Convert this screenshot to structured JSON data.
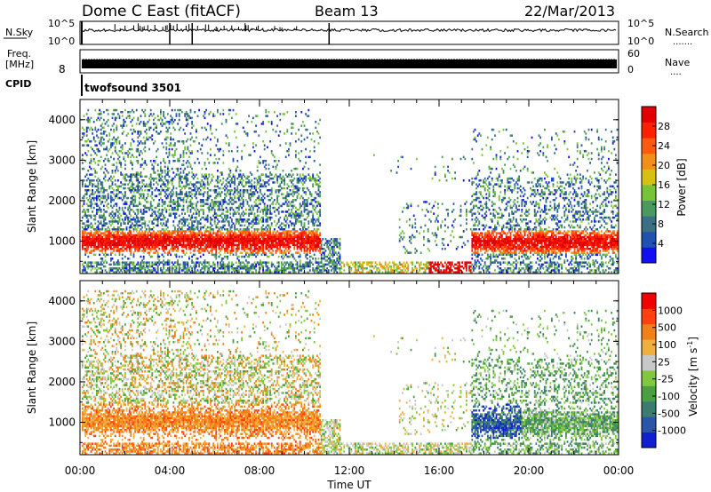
{
  "header": {
    "title": "Dome C East (fitACF)",
    "beam": "Beam 13",
    "date": "22/Mar/2013"
  },
  "nsky_panel": {
    "label": "N.Sky",
    "left_ticks": [
      "10^5",
      "10^0"
    ],
    "right_ticks": [
      "10^5",
      "10^0"
    ],
    "right_label": "N.Search",
    "right_label_dots": "......."
  },
  "freq_panel": {
    "label_line1": "Freq.",
    "label_line2": "[MHz]",
    "left_tick": "8",
    "right_ticks": [
      "60",
      "0"
    ],
    "right_label": "Nave",
    "right_label_dots": "...."
  },
  "cpid_panel": {
    "label": "CPID",
    "program": "twofsound 3501"
  },
  "x_axis": {
    "ticks": [
      "00:00",
      "04:00",
      "08:00",
      "12:00",
      "16:00",
      "20:00",
      "00:00"
    ],
    "label": "Time UT"
  },
  "chart_data": [
    {
      "type": "heatmap",
      "parameter": "Power",
      "ylabel": "Slant Range [km]",
      "yticks": [
        "1000",
        "2000",
        "3000",
        "4000"
      ],
      "ylim": [
        200,
        4500
      ],
      "xlim_hours": [
        0,
        24
      ],
      "colorbar": {
        "label": "Power [dB]",
        "tick_labels": [
          "4",
          "8",
          "12",
          "16",
          "20",
          "24",
          "28"
        ],
        "colors": [
          "#1010f0",
          "#2050b0",
          "#3c6f85",
          "#4a9a5e",
          "#78c438",
          "#d8c010",
          "#f09018",
          "#ff5a10",
          "#ff2000",
          "#e00000"
        ]
      }
    },
    {
      "type": "heatmap",
      "parameter": "Velocity",
      "ylabel": "Slant Range [km]",
      "yticks": [
        "1000",
        "2000",
        "3000",
        "4000"
      ],
      "ylim": [
        200,
        4500
      ],
      "xlim_hours": [
        0,
        24
      ],
      "colorbar": {
        "label": "Velocity [m s",
        "label_sup": "-1",
        "label_end": "]",
        "tick_labels": [
          "1000",
          "500",
          "100",
          "25",
          "-25",
          "-100",
          "-500",
          "-1000"
        ],
        "colors": [
          "#1020d0",
          "#2a55a8",
          "#3c7c70",
          "#4aa040",
          "#80c840",
          "#c8c8c8",
          "#f0b040",
          "#f08018",
          "#ff4010",
          "#f00000"
        ]
      }
    }
  ]
}
